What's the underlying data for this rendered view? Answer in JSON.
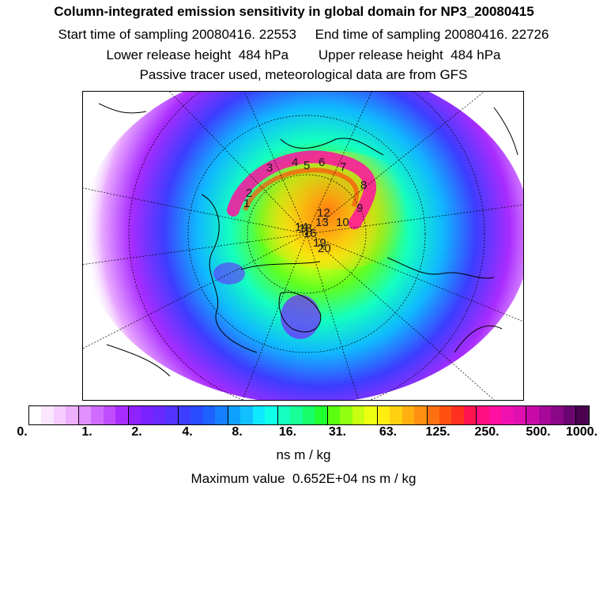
{
  "header": {
    "title": "Column-integrated emission sensitivity in global domain for NP3_20080415",
    "sampling_line": "Start time of sampling 20080416. 22553     End time of sampling 20080416. 22726",
    "release_line": "Lower release height  484 hPa        Upper release height  484 hPa",
    "tracer_line": "Passive tracer used, meteorological data are from GFS"
  },
  "map": {
    "projection": "north-polar-stereographic",
    "trajectory_labels": [
      "1",
      "2",
      "3",
      "4",
      "5",
      "6",
      "7",
      "8",
      "9",
      "10",
      "12",
      "13",
      "14",
      "16",
      "18",
      "19",
      "20"
    ]
  },
  "colorbar": {
    "colors": [
      "#ffffff",
      "#fbe6ff",
      "#f5ccff",
      "#eeb0ff",
      "#e091ff",
      "#cf6cff",
      "#bf4cff",
      "#a92cff",
      "#8f22ff",
      "#7a22ff",
      "#6a2aff",
      "#5533ff",
      "#3d3dff",
      "#2a4cff",
      "#1d62ff",
      "#1580ff",
      "#10a0ff",
      "#10c0ff",
      "#10e8ff",
      "#10ffe8",
      "#14ffc0",
      "#18ff98",
      "#16ff6a",
      "#20ff30",
      "#5aff10",
      "#90ff10",
      "#c8ff10",
      "#eeff10",
      "#ffee10",
      "#ffd010",
      "#ffb010",
      "#ff9010",
      "#ff7010",
      "#ff5010",
      "#ff3020",
      "#ff1450",
      "#ff1080",
      "#ff10a0",
      "#f010b0",
      "#e010b0",
      "#c80aa8",
      "#a8089a",
      "#8a0888",
      "#6a0470",
      "#4a0250"
    ],
    "ticks": [
      "0.",
      "1.",
      "2.",
      "4.",
      "8.",
      "16.",
      "31.",
      "63.",
      "125.",
      "250.",
      "500.",
      "1000."
    ],
    "unit": "ns m / kg"
  },
  "max_value_line": "Maximum value  0.652E+04 ns m / kg"
}
